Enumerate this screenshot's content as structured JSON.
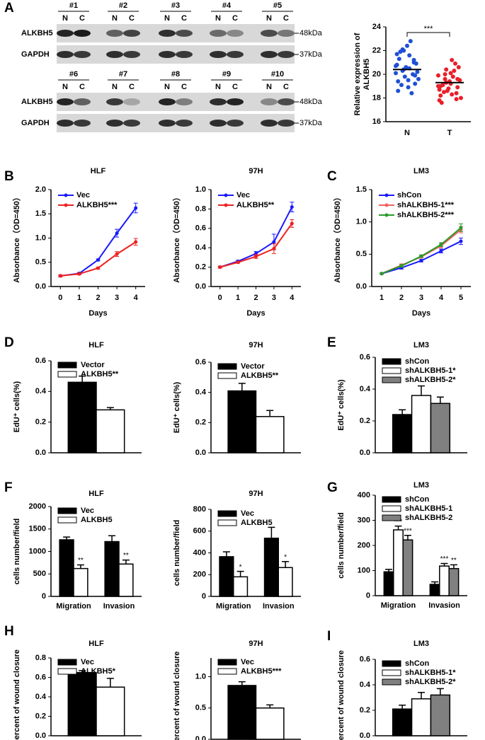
{
  "panel_labels": [
    "A",
    "B",
    "C",
    "D",
    "E",
    "F",
    "G",
    "H",
    "I"
  ],
  "blot": {
    "samples": [
      "#1",
      "#2",
      "#3",
      "#4",
      "#5",
      "#6",
      "#7",
      "#8",
      "#9",
      "#10"
    ],
    "lanes": [
      "N",
      "C"
    ],
    "proteins": [
      "ALKBH5",
      "GAPDH"
    ],
    "markers": [
      "48kDa",
      "37kDa"
    ]
  },
  "chart_data": [
    {
      "type": "scatter",
      "categories": [
        "N",
        "T"
      ],
      "ylabel": [
        "Relative expression of",
        "ALKBH5"
      ],
      "annotation": "***",
      "ylim": [
        16,
        24
      ],
      "yticks": [
        16,
        18,
        20,
        22,
        24
      ],
      "series": [
        {
          "color": "#1f4fd6",
          "mean": 20.4,
          "values": [
            20.1,
            21.0,
            19.5,
            22.1,
            20.8,
            19.2,
            21.6,
            20.4,
            18.6,
            20.9,
            22.8,
            19.8,
            21.3,
            20.2,
            18.4,
            20.6,
            21.9,
            19.6,
            20.0,
            22.4,
            19.1,
            20.7,
            21.2,
            18.9,
            20.3,
            21.7,
            19.9,
            20.5,
            22.0,
            19.4
          ]
        },
        {
          "color": "#e8202a",
          "mean": 19.3,
          "values": [
            19.0,
            18.4,
            20.1,
            19.6,
            17.8,
            18.9,
            21.2,
            19.3,
            18.2,
            20.6,
            19.8,
            18.6,
            17.6,
            19.5,
            20.3,
            18.8,
            19.1,
            18.0,
            20.9,
            19.4,
            18.5,
            19.9,
            17.9,
            19.2,
            20.0,
            18.7,
            19.6,
            18.3,
            20.4,
            19.0
          ]
        }
      ]
    },
    {
      "type": "line",
      "title": "HLF",
      "xlabel": "Days",
      "ylabel": "Absorbance（OD=450）",
      "x": [
        0,
        1,
        2,
        3,
        4
      ],
      "xlim": [
        -0.5,
        4.5
      ],
      "xticks": [
        0,
        1,
        2,
        3,
        4
      ],
      "ylim": [
        0,
        2
      ],
      "yticks": [
        {
          "value": 0,
          "label": "0.0"
        },
        0.5,
        {
          "value": 1,
          "label": "1.0"
        },
        1.5,
        {
          "value": 2,
          "label": "2.0"
        }
      ],
      "series": [
        {
          "name": "Vec",
          "color": "#1a1aff",
          "values": [
            0.22,
            0.27,
            0.55,
            1.1,
            1.62
          ],
          "errors": [
            0.02,
            0.02,
            0.02,
            0.08,
            0.1
          ]
        },
        {
          "name": "ALKBH5***",
          "color": "#ee2020",
          "values": [
            0.22,
            0.26,
            0.38,
            0.67,
            0.92
          ],
          "errors": [
            0.02,
            0.02,
            0.02,
            0.05,
            0.07
          ]
        }
      ]
    },
    {
      "type": "line",
      "title": "97H",
      "xlabel": "Days",
      "ylabel": "Absorbance（OD=450）",
      "x": [
        0,
        1,
        2,
        3,
        4
      ],
      "xlim": [
        -0.5,
        4.5
      ],
      "xticks": [
        0,
        1,
        2,
        3,
        4
      ],
      "ylim": [
        0,
        1
      ],
      "yticks": [
        {
          "value": 0,
          "label": "0.0"
        },
        0.2,
        0.4,
        0.6,
        0.8,
        {
          "value": 1,
          "label": "1.0"
        }
      ],
      "series": [
        {
          "name": "Vec",
          "color": "#1a1aff",
          "values": [
            0.2,
            0.26,
            0.34,
            0.46,
            0.82
          ],
          "errors": [
            0.01,
            0.01,
            0.02,
            0.08,
            0.05
          ]
        },
        {
          "name": "ALKBH5**",
          "color": "#ee2020",
          "values": [
            0.2,
            0.25,
            0.31,
            0.39,
            0.65
          ],
          "errors": [
            0.01,
            0.01,
            0.02,
            0.05,
            0.04
          ]
        }
      ]
    },
    {
      "type": "line",
      "title": "LM3",
      "xlabel": "Days",
      "ylabel": "Absorbance（OD=450）",
      "x": [
        1,
        2,
        3,
        4,
        5
      ],
      "xlim": [
        0.5,
        5.5
      ],
      "xticks": [
        1,
        2,
        3,
        4,
        5
      ],
      "ylim": [
        0,
        1.5
      ],
      "yticks": [
        {
          "value": 0,
          "label": "0.0"
        },
        0.5,
        {
          "value": 1,
          "label": "1.0"
        },
        1.5
      ],
      "series": [
        {
          "name": "shCon",
          "color": "#1a1aff",
          "values": [
            0.2,
            0.29,
            0.4,
            0.55,
            0.7
          ],
          "errors": [
            0.01,
            0.02,
            0.02,
            0.03,
            0.05
          ]
        },
        {
          "name": "shALKBH5-1***",
          "color": "#f06060",
          "values": [
            0.2,
            0.33,
            0.46,
            0.63,
            0.88
          ],
          "errors": [
            0.01,
            0.02,
            0.02,
            0.03,
            0.05
          ]
        },
        {
          "name": "shALKBH5-2***",
          "color": "#2a9a2a",
          "values": [
            0.2,
            0.32,
            0.47,
            0.65,
            0.91
          ],
          "errors": [
            0.01,
            0.02,
            0.02,
            0.03,
            0.06
          ]
        }
      ]
    },
    {
      "type": "bar",
      "title": "HLF",
      "ylabel": "EdU⁺ cells(%)",
      "ylim": [
        0,
        0.6
      ],
      "yticks": [
        {
          "value": 0,
          "label": "0.0"
        },
        0.2,
        0.4,
        0.6
      ],
      "series": [
        {
          "name": "Vector",
          "color": "#000000",
          "values": [
            0.46
          ],
          "errors": [
            0.04
          ]
        },
        {
          "name": "ALKBH5**",
          "color": "#ffffff",
          "values": [
            0.28
          ],
          "errors": [
            0.015
          ]
        }
      ]
    },
    {
      "type": "bar",
      "title": "97H",
      "ylabel": "EdU⁺ cells(%)",
      "ylim": [
        0,
        0.6
      ],
      "yticks": [
        {
          "value": 0,
          "label": "0.0"
        },
        0.2,
        0.4,
        0.6
      ],
      "series": [
        {
          "name": "Vector",
          "color": "#000000",
          "values": [
            0.41
          ],
          "errors": [
            0.05
          ]
        },
        {
          "name": "ALKBH5**",
          "color": "#ffffff",
          "values": [
            0.24
          ],
          "errors": [
            0.04
          ]
        }
      ]
    },
    {
      "type": "bar",
      "title": "LM3",
      "ylabel": "EdU⁺ cells(%)",
      "ylim": [
        0,
        0.6
      ],
      "yticks": [
        {
          "value": 0,
          "label": "0.0"
        },
        0.2,
        0.4,
        0.6
      ],
      "series": [
        {
          "name": "shCon",
          "color": "#000000",
          "values": [
            0.24
          ],
          "errors": [
            0.03
          ]
        },
        {
          "name": "shALKBH5-1*",
          "color": "#ffffff",
          "values": [
            0.36
          ],
          "errors": [
            0.06
          ]
        },
        {
          "name": "shALKBH5-2*",
          "color": "#808080",
          "values": [
            0.31
          ],
          "errors": [
            0.04
          ]
        }
      ]
    },
    {
      "type": "bar",
      "title": "HLF",
      "ylabel": "cells number/field",
      "categories": [
        "Migration",
        "Invasion"
      ],
      "ylim": [
        0,
        2000
      ],
      "yticks": [
        0,
        500,
        1000,
        1500,
        2000
      ],
      "series": [
        {
          "name": "Vec",
          "color": "#000000",
          "values": [
            1260,
            1220
          ],
          "errors": [
            60,
            130
          ]
        },
        {
          "name": "ALKBH5",
          "color": "#ffffff",
          "values": [
            620,
            720
          ],
          "errors": [
            80,
            90
          ],
          "annotations": [
            "**",
            "**"
          ]
        }
      ]
    },
    {
      "type": "bar",
      "title": "97H",
      "ylabel": "cells number/field",
      "categories": [
        "Migration",
        "Invasion"
      ],
      "ylim": [
        0,
        800
      ],
      "yticks": [
        0,
        200,
        400,
        600,
        800
      ],
      "series": [
        {
          "name": "Vec",
          "color": "#000000",
          "values": [
            365,
            535
          ],
          "errors": [
            45,
            100
          ]
        },
        {
          "name": "ALKBH5",
          "color": "#ffffff",
          "values": [
            180,
            265
          ],
          "errors": [
            50,
            55
          ],
          "annotations": [
            "*",
            "*"
          ]
        }
      ]
    },
    {
      "type": "bar",
      "title": "LM3",
      "ylabel": "cells number/field",
      "categories": [
        "Migration",
        "Invasion"
      ],
      "ylim": [
        0,
        400
      ],
      "yticks": [
        0,
        100,
        200,
        300,
        400
      ],
      "series": [
        {
          "name": "shCon",
          "color": "#000000",
          "values": [
            95,
            45
          ],
          "errors": [
            10,
            10
          ]
        },
        {
          "name": "shALKBH5-1",
          "color": "#ffffff",
          "values": [
            262,
            118
          ],
          "errors": [
            15,
            10
          ],
          "annotations": [
            "***",
            "***"
          ]
        },
        {
          "name": "shALKBH5-2",
          "color": "#808080",
          "values": [
            222,
            108
          ],
          "errors": [
            18,
            15
          ],
          "annotations": [
            "***",
            "**"
          ]
        }
      ]
    },
    {
      "type": "bar",
      "title": "HLF",
      "ylabel": "percent of wound closure",
      "ylim": [
        0,
        0.8
      ],
      "yticks": [
        {
          "value": 0,
          "label": "0.0"
        },
        0.2,
        0.4,
        0.6,
        0.8
      ],
      "series": [
        {
          "name": "Vec",
          "color": "#000000",
          "values": [
            0.65
          ],
          "errors": [
            0.02
          ]
        },
        {
          "name": "ALKBH5*",
          "color": "#ffffff",
          "values": [
            0.5
          ],
          "errors": [
            0.09
          ]
        }
      ]
    },
    {
      "type": "bar",
      "title": "97H",
      "ylabel": "percent of wound closure",
      "ylim": [
        0,
        1.3
      ],
      "yticks": [
        {
          "value": 0,
          "label": "0.0"
        },
        0.5,
        {
          "value": 1,
          "label": "1.0"
        }
      ],
      "series": [
        {
          "name": "Vec",
          "color": "#000000",
          "values": [
            0.86
          ],
          "errors": [
            0.06
          ]
        },
        {
          "name": "ALKBH5***",
          "color": "#ffffff",
          "values": [
            0.5
          ],
          "errors": [
            0.05
          ]
        }
      ]
    },
    {
      "type": "bar",
      "title": "LM3",
      "ylabel": "percent of wound closure",
      "ylim": [
        0,
        0.6
      ],
      "yticks": [
        {
          "value": 0,
          "label": "0.0"
        },
        0.2,
        0.4,
        0.6
      ],
      "series": [
        {
          "name": "shCon",
          "color": "#000000",
          "values": [
            0.21
          ],
          "errors": [
            0.03
          ]
        },
        {
          "name": "shALKBH5-1*",
          "color": "#ffffff",
          "values": [
            0.29
          ],
          "errors": [
            0.05
          ]
        },
        {
          "name": "shALKBH5-2*",
          "color": "#808080",
          "values": [
            0.32
          ],
          "errors": [
            0.05
          ]
        }
      ]
    }
  ]
}
